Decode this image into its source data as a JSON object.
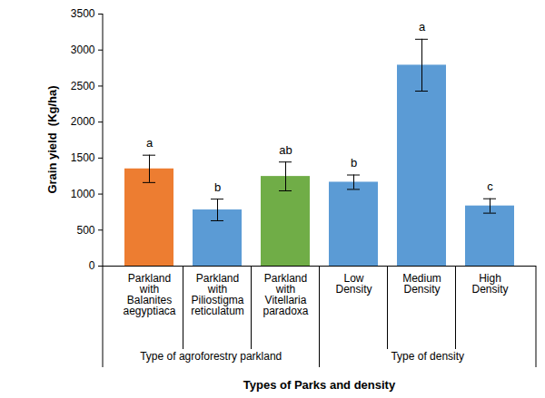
{
  "chart_data": {
    "type": "bar",
    "x_label": "Types of Parks and density",
    "y_label": "Grain yield  (Kg/ha)",
    "categories": [
      "Parkland with Balanites aegyptiaca",
      "Parkland with Piliostigma reticulatum",
      "Parkland with Vitellaria paradoxa",
      "Low Density",
      "Medium Density",
      "High Density"
    ],
    "values": [
      1350,
      780,
      1245,
      1165,
      2790,
      835
    ],
    "errors": [
      190,
      150,
      200,
      100,
      360,
      100
    ],
    "letters": [
      "a",
      "b",
      "ab",
      "b",
      "a",
      "c"
    ],
    "colors": [
      "#ed7d31",
      "#5b9bd5",
      "#70ad47",
      "#5b9bd5",
      "#5b9bd5",
      "#5b9bd5"
    ],
    "groups": [
      {
        "label": "Type of agroforestry parkland",
        "members": [
          "Parkland with Balanites aegyptiaca",
          "Parkland with Piliostigma reticulatum",
          "Parkland with Vitellaria paradoxa"
        ]
      },
      {
        "label": "Type of density",
        "members": [
          "Low Density",
          "Medium Density",
          "High Density"
        ]
      }
    ],
    "ylim": [
      0,
      3500
    ],
    "yticks": [
      0,
      500,
      1000,
      1500,
      2000,
      2500,
      3000,
      3500
    ],
    "grid": false,
    "data_labels": false
  }
}
